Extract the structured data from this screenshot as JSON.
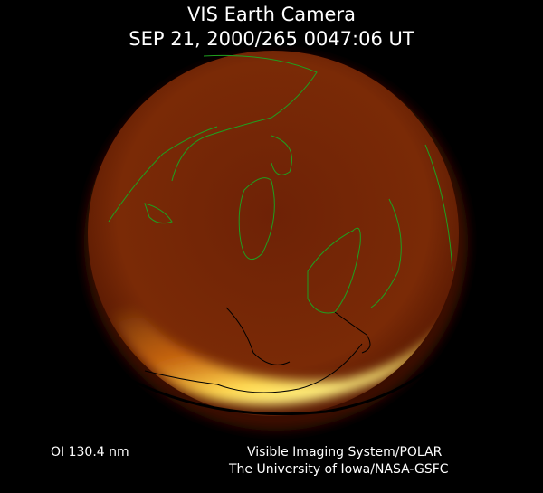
{
  "header": {
    "title": "VIS Earth Camera",
    "timestamp": "SEP 21, 2000/265 0047:06 UT"
  },
  "footer": {
    "wavelength": "OI  130.4 nm",
    "credit_line1": "Visible Imaging System/POLAR",
    "credit_line2": "The University of Iowa/NASA-GSFC"
  },
  "colors": {
    "background": "#000000",
    "disk_dim": "#6a1a04",
    "aurora_bright": "#ffe060",
    "coastline_day": "#1fa01f",
    "coastline_night": "#000000"
  }
}
